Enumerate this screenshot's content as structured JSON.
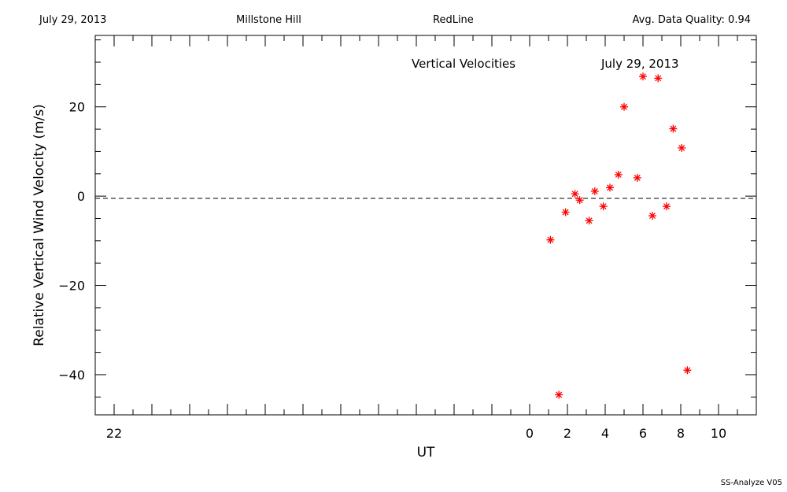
{
  "header": {
    "date": "July 29, 2013",
    "site": "Millstone Hill",
    "instrument": "RedLine",
    "quality": "Avg. Data Quality: 0.94"
  },
  "footer": {
    "version": "SS-Analyze V05"
  },
  "chart_data": {
    "type": "scatter",
    "title": "Vertical Velocities",
    "subtitle": "July 29, 2013",
    "xlabel": "UT",
    "ylabel": "Relative Vertical Wind Velocity (m/s)",
    "xlim": [
      -23,
      12
    ],
    "ylim": [
      -49,
      36
    ],
    "x_ticks": [
      -22,
      0,
      2,
      4,
      6,
      8,
      10
    ],
    "x_tick_labels": [
      "22",
      "0",
      "2",
      "4",
      "6",
      "8",
      "10"
    ],
    "y_ticks": [
      -40,
      -20,
      0,
      20
    ],
    "y_tick_labels": [
      "−40",
      "−20",
      "0",
      "20"
    ],
    "zero_line": true,
    "marker_color": "#ff0000",
    "points": [
      {
        "x": 1.1,
        "y": -9.8
      },
      {
        "x": 1.55,
        "y": -44.5
      },
      {
        "x": 1.9,
        "y": -3.6
      },
      {
        "x": 2.4,
        "y": 0.5
      },
      {
        "x": 2.65,
        "y": -0.9
      },
      {
        "x": 3.15,
        "y": -5.5
      },
      {
        "x": 3.45,
        "y": 1.1
      },
      {
        "x": 3.9,
        "y": -2.3
      },
      {
        "x": 4.25,
        "y": 1.9
      },
      {
        "x": 4.7,
        "y": 4.8
      },
      {
        "x": 5.0,
        "y": 20.0
      },
      {
        "x": 5.7,
        "y": 4.1
      },
      {
        "x": 6.0,
        "y": 26.8
      },
      {
        "x": 6.5,
        "y": -4.4
      },
      {
        "x": 6.8,
        "y": 26.4
      },
      {
        "x": 7.25,
        "y": -2.3
      },
      {
        "x": 7.6,
        "y": 15.1
      },
      {
        "x": 8.05,
        "y": 10.8
      },
      {
        "x": 8.35,
        "y": -39.0
      }
    ]
  }
}
